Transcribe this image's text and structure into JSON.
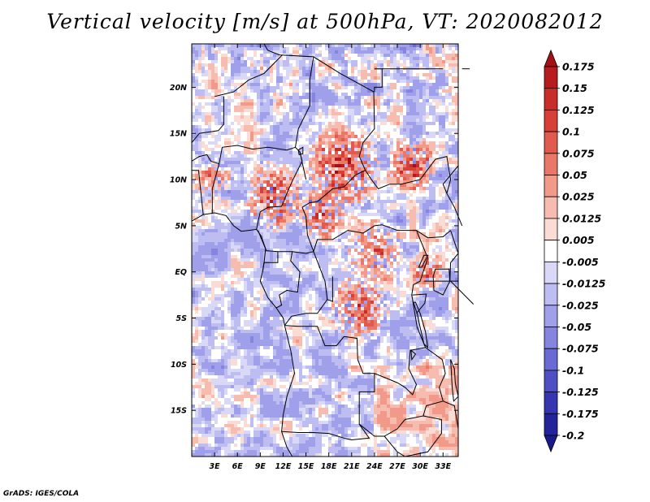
{
  "title": "Vertical velocity [m/s] at 500hPa, VT: 2020082012",
  "credit": "GrADS: IGES/COLA",
  "map": {
    "lat_labels": [
      "20N",
      "15N",
      "10N",
      "5N",
      "EQ",
      "5S",
      "10S",
      "15S"
    ],
    "lon_labels": [
      "3E",
      "6E",
      "9E",
      "12E",
      "15E",
      "18E",
      "21E",
      "24E",
      "27E",
      "30E",
      "33E"
    ],
    "variable": "vertical velocity",
    "level": "500hPa",
    "units": "m/s"
  },
  "colorbar": {
    "labels": [
      "0.175",
      "0.15",
      "0.125",
      "0.1",
      "0.075",
      "0.05",
      "0.025",
      "0.0125",
      "0.005",
      "-0.005",
      "-0.0125",
      "-0.025",
      "-0.05",
      "-0.075",
      "-0.1",
      "-0.125",
      "-0.175",
      "-0.2"
    ],
    "colors": [
      "#a50f15",
      "#b81b1e",
      "#c92d2a",
      "#d73f39",
      "#e15a4f",
      "#e97868",
      "#f29a8a",
      "#f7bcb0",
      "#fbdcd4",
      "#ffffff",
      "#d9d9f7",
      "#bdbdf2",
      "#9f9fea",
      "#8585e0",
      "#6a6ad4",
      "#4f4fc4",
      "#3636b0",
      "#24249a",
      "#1a1a8a"
    ],
    "top_arrow_color": "#a50f15",
    "bottom_arrow_color": "#1a1a8a"
  }
}
